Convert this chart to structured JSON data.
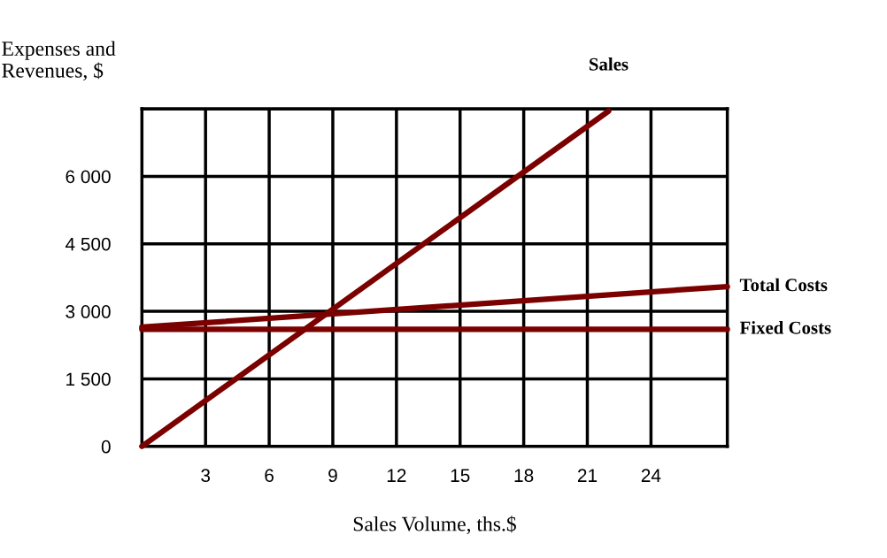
{
  "chart_data": {
    "type": "line",
    "xlabel": "Sales Volume, ths.$",
    "ylabel": "Expenses and\nRevenues, $",
    "series": [
      {
        "name": "Sales",
        "color": "#7b0000",
        "x": [
          0,
          22
        ],
        "values": [
          0,
          7450
        ]
      },
      {
        "name": "Total Costs",
        "color": "#7b0000",
        "x": [
          0,
          27.6
        ],
        "values": [
          2650,
          3550
        ]
      },
      {
        "name": "Fixed Costs",
        "color": "#7b0000",
        "x": [
          0,
          27.6
        ],
        "values": [
          2600,
          2600
        ]
      }
    ],
    "xlim": [
      0,
      27.6
    ],
    "xticks": [
      3,
      6,
      9,
      12,
      15,
      18,
      21,
      24
    ],
    "ylim": [
      0,
      7500
    ],
    "yticks": [
      0,
      {
        "value": 1500,
        "label": "1 500"
      },
      {
        "value": 3000,
        "label": "3 000"
      },
      {
        "value": 4500,
        "label": "4 500"
      },
      {
        "value": 6000,
        "label": "6 000"
      },
      {
        "value": 7500,
        "label": null
      }
    ],
    "grid": true,
    "legend": false,
    "marker": "none",
    "line_style": "solid"
  }
}
